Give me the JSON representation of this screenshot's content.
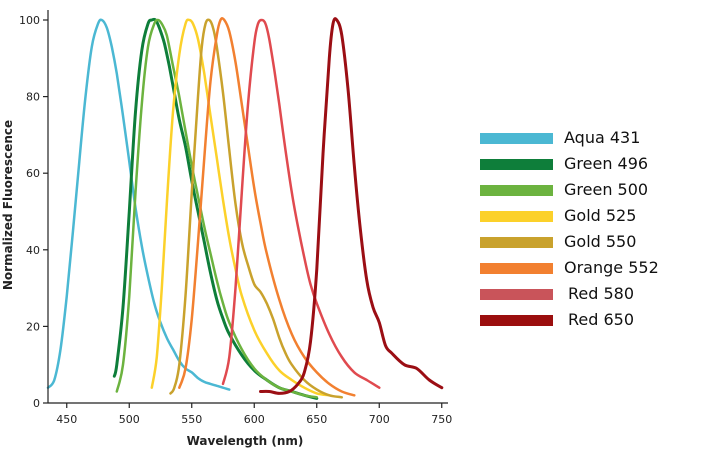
{
  "chart_data": {
    "type": "line",
    "title": "",
    "xlabel": "Wavelength (nm)",
    "ylabel": "Normalized  Fluorescence",
    "xlim": [
      435,
      755
    ],
    "ylim": [
      0,
      100
    ],
    "xticks": [
      "450",
      "500",
      "550",
      "600",
      "650",
      "700",
      "750"
    ],
    "yticks": [
      "0",
      "20",
      "40",
      "60",
      "80",
      "100"
    ],
    "series": [
      {
        "name": "Aqua 431",
        "color": "#4BB8D3",
        "width": 2.5,
        "x": [
          435,
          440,
          445,
          450,
          455,
          460,
          465,
          470,
          475,
          478,
          482,
          486,
          490,
          495,
          500,
          505,
          510,
          515,
          520,
          525,
          530,
          535,
          540,
          545,
          550,
          555,
          560,
          565,
          570,
          575,
          580
        ],
        "y": [
          4,
          6,
          14,
          28,
          45,
          63,
          80,
          93,
          99,
          100,
          98,
          93,
          86,
          75,
          63,
          51,
          41,
          33,
          26,
          21,
          17,
          14,
          11,
          9,
          8,
          6.5,
          5.5,
          5,
          4.5,
          4,
          3.5
        ]
      },
      {
        "name": "Green 496",
        "color": "#0E7E3A",
        "width": 3,
        "x": [
          488,
          490,
          495,
          500,
          505,
          510,
          515,
          518,
          521,
          524,
          528,
          532,
          536,
          540,
          545,
          550,
          555,
          560,
          565,
          570,
          575,
          580,
          590,
          600,
          610,
          620,
          630,
          640,
          650
        ],
        "y": [
          7,
          10,
          25,
          50,
          76,
          92,
          99,
          100,
          100,
          98,
          94,
          88,
          81,
          74,
          67,
          58,
          50,
          42,
          34,
          27,
          22,
          18,
          12.5,
          8.5,
          6,
          4,
          3,
          2,
          1.2
        ]
      },
      {
        "name": "Green 500",
        "color": "#6CB33F",
        "width": 2.5,
        "x": [
          490,
          495,
          500,
          505,
          510,
          515,
          520,
          523,
          526,
          530,
          535,
          540,
          545,
          550,
          555,
          560,
          565,
          570,
          575,
          580,
          590,
          600,
          610,
          620,
          630,
          640,
          650
        ],
        "y": [
          3,
          10,
          28,
          55,
          78,
          93,
          99,
          100,
          99,
          96,
          88,
          80,
          71,
          62,
          54,
          46,
          39,
          32,
          26,
          21,
          14,
          9,
          6,
          4,
          3,
          2,
          1.5
        ]
      },
      {
        "name": "Gold 525",
        "color": "#FCD12A",
        "width": 2.5,
        "x": [
          518,
          522,
          526,
          530,
          535,
          540,
          545,
          548,
          551,
          555,
          560,
          565,
          570,
          575,
          580,
          585,
          590,
          600,
          610,
          620,
          630,
          640,
          650,
          660
        ],
        "y": [
          4,
          12,
          30,
          52,
          76,
          91,
          99,
          100,
          99,
          95,
          86,
          75,
          64,
          53,
          43,
          35,
          28,
          19,
          13,
          8.5,
          6,
          4,
          2.5,
          2
        ]
      },
      {
        "name": "Gold 550",
        "color": "#C9A22D",
        "width": 2.5,
        "x": [
          533,
          536,
          540,
          545,
          550,
          555,
          558,
          561,
          564,
          567,
          570,
          575,
          580,
          585,
          590,
          595,
          600,
          605,
          610,
          615,
          620,
          625,
          630,
          640,
          650,
          660,
          670
        ],
        "y": [
          2.5,
          4,
          10,
          28,
          55,
          80,
          93,
          99,
          100,
          98,
          93,
          81,
          66,
          52,
          42,
          36,
          31,
          29,
          26,
          22,
          17,
          13,
          10,
          6,
          3.5,
          2,
          1.5
        ]
      },
      {
        "name": "Orange 552",
        "color": "#F28030",
        "width": 2.5,
        "x": [
          540,
          545,
          550,
          555,
          560,
          565,
          570,
          573,
          576,
          580,
          585,
          590,
          595,
          600,
          605,
          610,
          620,
          630,
          640,
          650,
          660,
          670,
          680
        ],
        "y": [
          4,
          9,
          22,
          42,
          64,
          84,
          96,
          100,
          100,
          97,
          89,
          78,
          67,
          56,
          47,
          39,
          27,
          18,
          12,
          8,
          5,
          3,
          2
        ]
      },
      {
        "name": "Red 580",
        "color": "#E04A4F",
        "width": 2.5,
        "x": [
          575,
          580,
          585,
          590,
          595,
          600,
          603,
          606,
          609,
          612,
          616,
          620,
          625,
          630,
          635,
          640,
          645,
          650,
          660,
          670,
          680,
          690,
          700
        ],
        "y": [
          5,
          12,
          30,
          55,
          78,
          94,
          99,
          100,
          99,
          95,
          87,
          78,
          66,
          55,
          46,
          38,
          31,
          26,
          18,
          12,
          8,
          6,
          4
        ]
      },
      {
        "name": "Red 650",
        "color": "#9B0E14",
        "width": 3,
        "x": [
          605,
          612,
          620,
          628,
          635,
          640,
          645,
          650,
          655,
          660,
          663,
          666,
          670,
          675,
          680,
          685,
          690,
          695,
          700,
          705,
          710,
          720,
          730,
          740,
          750
        ],
        "y": [
          3,
          3,
          2.5,
          3,
          5,
          8,
          16,
          35,
          65,
          90,
          99,
          100,
          96,
          82,
          62,
          45,
          32,
          25,
          21,
          15,
          13,
          10,
          9,
          6,
          4
        ]
      }
    ]
  },
  "legend": {
    "items": [
      {
        "label": "Aqua 431",
        "color": "#4BB8D3"
      },
      {
        "label": "Green 496",
        "color": "#0E7E3A"
      },
      {
        "label": "Green 500",
        "color": "#6CB33F"
      },
      {
        "label": "Gold 525",
        "color": "#FCD12A"
      },
      {
        "label": "Gold 550",
        "color": "#C9A22D"
      },
      {
        "label": "Orange 552",
        "color": "#F28030"
      },
      {
        "label": "Red 580",
        "color": "#C9545A"
      },
      {
        "label": "Red 650",
        "color": "#9B0E0E"
      }
    ]
  }
}
